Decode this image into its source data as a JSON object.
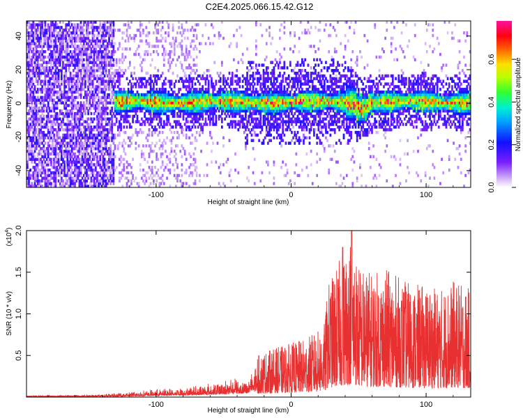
{
  "title": "C2E4.2025.066.15.42.G12",
  "colorbar": {
    "label": "Normalized spectral amplitude",
    "ticks": [
      "0.0",
      "0.2",
      "0.4",
      "0.6"
    ],
    "tick_values": [
      0.0,
      0.2,
      0.4,
      0.6
    ],
    "range": [
      0.0,
      0.78
    ]
  },
  "chart_data": [
    {
      "type": "heatmap",
      "title": "C2E4.2025.066.15.42.G12",
      "xlabel": "Height of straight line (km)",
      "ylabel": "Frequency (Hz)",
      "xlim": [
        -196,
        133
      ],
      "ylim": [
        -50,
        49
      ],
      "x_ticks": [
        -100,
        0,
        100
      ],
      "x_tick_labels": [
        "-100",
        "0",
        "100"
      ],
      "y_ticks": [
        -40,
        -20,
        0,
        20,
        40
      ],
      "y_tick_labels": [
        "-40",
        "-20",
        "0",
        "20",
        "40"
      ],
      "colorscale": "rainbow (purple-blue-cyan-green-yellow-red-magenta)",
      "description_regions": [
        {
          "x_range": [
            -196,
            -132
          ],
          "freq_range": [
            -50,
            49
          ],
          "amplitude": "low (purple), broadband"
        },
        {
          "x_range": [
            -132,
            133
          ],
          "freq_range": [
            -10,
            10
          ],
          "amplitude": "0.2-0.7 concentrated band near 0 Hz"
        }
      ]
    },
    {
      "type": "line",
      "xlabel": "Height of straight line (km)",
      "ylabel": "SNR (10 * v/v)",
      "y_multiplier_label": "(x10",
      "y_multiplier_exp": "4",
      "xlim": [
        -196,
        133
      ],
      "ylim": [
        0,
        2.0
      ],
      "x_ticks": [
        -100,
        0,
        100
      ],
      "x_tick_labels": [
        "-100",
        "0",
        "100"
      ],
      "y_ticks": [
        0.5,
        1.0,
        1.5,
        2.0
      ],
      "y_tick_labels": [
        "0.5",
        "1.0",
        "1.5",
        "2.0"
      ],
      "series": [
        {
          "color": "#e83030",
          "envelope_x": [
            -196,
            -160,
            -130,
            -100,
            -80,
            -60,
            -40,
            -30,
            -25,
            -20,
            -10,
            0,
            10,
            20,
            25,
            27,
            30,
            40,
            45,
            50,
            60,
            70,
            80,
            90,
            100,
            110,
            120,
            133
          ],
          "envelope_max": [
            0.02,
            0.03,
            0.05,
            0.1,
            0.13,
            0.18,
            0.25,
            0.3,
            0.5,
            0.55,
            0.6,
            0.65,
            0.7,
            0.8,
            0.9,
            1.35,
            1.45,
            1.8,
            2.0,
            1.6,
            1.5,
            1.55,
            1.45,
            1.35,
            1.35,
            1.3,
            1.4,
            1.3
          ]
        }
      ]
    }
  ]
}
